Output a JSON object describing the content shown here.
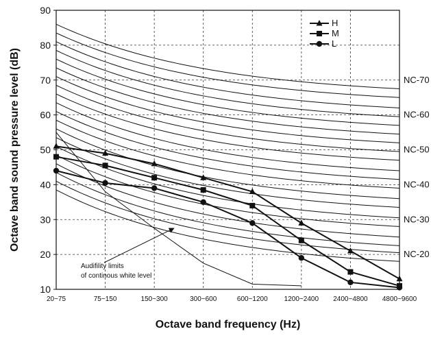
{
  "chart_data": {
    "type": "line",
    "xlabel": "Octave band frequency (Hz)",
    "ylabel": "Octave band sound pressure level (dB)",
    "categories": [
      "20~75",
      "75~150",
      "150~300",
      "300~600",
      "600~1200",
      "1200~2400",
      "2400~4800",
      "4800~9600"
    ],
    "ylim": [
      10,
      90
    ],
    "yticks": [
      10,
      20,
      30,
      40,
      50,
      60,
      70,
      80,
      90
    ],
    "grid": "dashed",
    "legend_position": "top-right",
    "series": [
      {
        "name": "H",
        "marker": "triangle",
        "values": [
          51,
          49,
          46,
          42,
          38,
          29,
          21,
          13
        ]
      },
      {
        "name": "M",
        "marker": "square",
        "values": [
          48,
          45.5,
          42,
          38.5,
          34,
          24,
          15,
          11
        ]
      },
      {
        "name": "L",
        "marker": "circle",
        "values": [
          44,
          40.5,
          39,
          35,
          29,
          19,
          12,
          10.5
        ]
      }
    ],
    "nc_curves": [
      {
        "start": 86,
        "end": 67.5
      },
      {
        "start": 83.5,
        "end": 65
      },
      {
        "start": 81,
        "end": 62
      },
      {
        "start": 78.5,
        "end": 59.5
      },
      {
        "start": 76,
        "end": 57
      },
      {
        "start": 73.5,
        "end": 54.5
      },
      {
        "start": 71,
        "end": 52
      },
      {
        "start": 68.5,
        "end": 49.5
      },
      {
        "start": 66,
        "end": 47
      },
      {
        "start": 63.5,
        "end": 44
      },
      {
        "start": 61,
        "end": 41.5
      },
      {
        "start": 58.5,
        "end": 39
      },
      {
        "start": 56,
        "end": 36
      },
      {
        "start": 53.5,
        "end": 33.5
      },
      {
        "start": 51,
        "end": 30.5
      },
      {
        "start": 48.5,
        "end": 28
      },
      {
        "start": 46,
        "end": 25
      },
      {
        "start": 43.5,
        "end": 22.5
      },
      {
        "start": 41,
        "end": 20.5
      },
      {
        "start": 38.5,
        "end": 18
      }
    ],
    "nc_labels": [
      {
        "text": "NC-70",
        "y": 70
      },
      {
        "text": "NC-60",
        "y": 60
      },
      {
        "text": "NC-50",
        "y": 50
      },
      {
        "text": "NC-40",
        "y": 40
      },
      {
        "text": "NC-30",
        "y": 30
      },
      {
        "text": "NC-20",
        "y": 20
      }
    ],
    "audibility_curve": [
      55,
      38,
      27.5,
      17.5,
      11.5,
      11
    ],
    "annotation": {
      "lines": [
        "Audifility limits",
        "of continous white level"
      ],
      "arrow_target": [
        2.4,
        27.5
      ]
    }
  }
}
